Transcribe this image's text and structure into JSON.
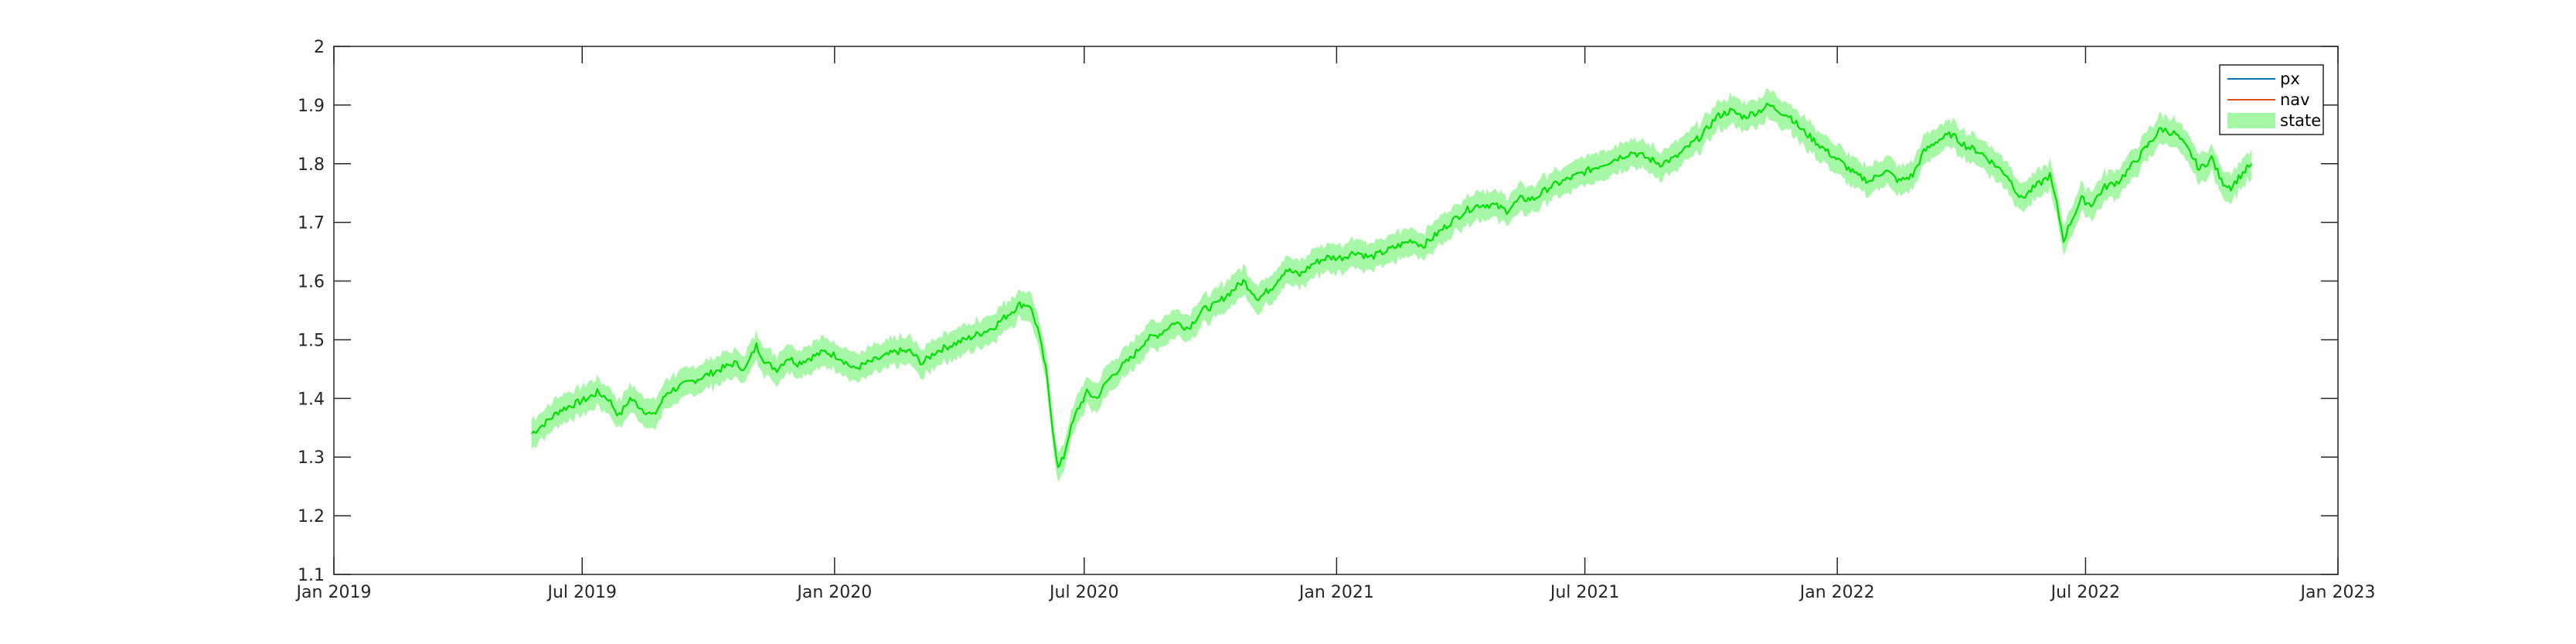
{
  "chart_data": {
    "type": "line",
    "title": "",
    "xlabel": "",
    "ylabel": "",
    "x_axis": {
      "type": "date",
      "range": [
        "2019-01-01",
        "2023-01-01"
      ],
      "ticks": [
        {
          "date": "2019-01-01",
          "label": "Jan 2019"
        },
        {
          "date": "2019-07-01",
          "label": "Jul 2019"
        },
        {
          "date": "2020-01-01",
          "label": "Jan 2020"
        },
        {
          "date": "2020-07-01",
          "label": "Jul 2020"
        },
        {
          "date": "2021-01-01",
          "label": "Jan 2021"
        },
        {
          "date": "2021-07-01",
          "label": "Jul 2021"
        },
        {
          "date": "2022-01-01",
          "label": "Jan 2022"
        },
        {
          "date": "2022-07-01",
          "label": "Jul 2022"
        },
        {
          "date": "2023-01-01",
          "label": "Jan 2023"
        }
      ]
    },
    "y_axis": {
      "range": [
        1.1,
        2.0
      ],
      "ticks": [
        1.1,
        1.2,
        1.3,
        1.4,
        1.5,
        1.6,
        1.7,
        1.8,
        1.9,
        2.0
      ],
      "tick_labels": [
        "1.1",
        "1.2",
        "1.3",
        "1.4",
        "1.5",
        "1.6",
        "1.7",
        "1.8",
        "1.9",
        "2"
      ]
    },
    "grid": false,
    "legend": {
      "position": "top-right",
      "entries": [
        {
          "name": "px",
          "color": "#0072BD",
          "kind": "line"
        },
        {
          "name": "nav",
          "color": "#D95319",
          "kind": "line"
        },
        {
          "name": "state",
          "color": "#A6F7A6",
          "kind": "band"
        }
      ]
    },
    "colors": {
      "line": "#00E000",
      "band": "#A6F7A6",
      "axes": "#262626"
    },
    "series": [
      {
        "name": "px",
        "band": 0.02,
        "points": [
          [
            "2019-05-25",
            1.34
          ],
          [
            "2019-06-05",
            1.36
          ],
          [
            "2019-06-15",
            1.38
          ],
          [
            "2019-06-25",
            1.39
          ],
          [
            "2019-07-05",
            1.4
          ],
          [
            "2019-07-12",
            1.41
          ],
          [
            "2019-07-20",
            1.4
          ],
          [
            "2019-07-28",
            1.37
          ],
          [
            "2019-08-05",
            1.4
          ],
          [
            "2019-08-15",
            1.38
          ],
          [
            "2019-08-22",
            1.37
          ],
          [
            "2019-09-01",
            1.41
          ],
          [
            "2019-09-10",
            1.42
          ],
          [
            "2019-09-20",
            1.43
          ],
          [
            "2019-09-30",
            1.44
          ],
          [
            "2019-10-10",
            1.45
          ],
          [
            "2019-10-20",
            1.46
          ],
          [
            "2019-10-28",
            1.45
          ],
          [
            "2019-11-05",
            1.49
          ],
          [
            "2019-11-12",
            1.46
          ],
          [
            "2019-11-20",
            1.45
          ],
          [
            "2019-11-28",
            1.47
          ],
          [
            "2019-12-05",
            1.46
          ],
          [
            "2019-12-15",
            1.47
          ],
          [
            "2019-12-25",
            1.48
          ],
          [
            "2020-01-05",
            1.47
          ],
          [
            "2020-01-15",
            1.45
          ],
          [
            "2020-01-25",
            1.46
          ],
          [
            "2020-02-05",
            1.47
          ],
          [
            "2020-02-15",
            1.48
          ],
          [
            "2020-02-25",
            1.48
          ],
          [
            "2020-03-05",
            1.46
          ],
          [
            "2020-03-15",
            1.48
          ],
          [
            "2020-03-25",
            1.49
          ],
          [
            "2020-04-05",
            1.5
          ],
          [
            "2020-04-15",
            1.51
          ],
          [
            "2020-04-25",
            1.52
          ],
          [
            "2020-05-05",
            1.54
          ],
          [
            "2020-05-15",
            1.56
          ],
          [
            "2020-05-22",
            1.56
          ],
          [
            "2020-05-28",
            1.52
          ],
          [
            "2020-06-03",
            1.45
          ],
          [
            "2020-06-08",
            1.35
          ],
          [
            "2020-06-12",
            1.28
          ],
          [
            "2020-06-16",
            1.3
          ],
          [
            "2020-06-20",
            1.34
          ],
          [
            "2020-06-26",
            1.38
          ],
          [
            "2020-07-03",
            1.41
          ],
          [
            "2020-07-10",
            1.4
          ],
          [
            "2020-07-18",
            1.43
          ],
          [
            "2020-07-26",
            1.45
          ],
          [
            "2020-08-05",
            1.47
          ],
          [
            "2020-08-15",
            1.5
          ],
          [
            "2020-08-25",
            1.51
          ],
          [
            "2020-09-05",
            1.53
          ],
          [
            "2020-09-15",
            1.52
          ],
          [
            "2020-09-25",
            1.55
          ],
          [
            "2020-10-05",
            1.56
          ],
          [
            "2020-10-15",
            1.58
          ],
          [
            "2020-10-25",
            1.6
          ],
          [
            "2020-11-05",
            1.57
          ],
          [
            "2020-11-15",
            1.59
          ],
          [
            "2020-11-25",
            1.62
          ],
          [
            "2020-12-05",
            1.61
          ],
          [
            "2020-12-15",
            1.63
          ],
          [
            "2020-12-25",
            1.64
          ],
          [
            "2021-01-05",
            1.64
          ],
          [
            "2021-01-15",
            1.65
          ],
          [
            "2021-01-25",
            1.64
          ],
          [
            "2021-02-05",
            1.65
          ],
          [
            "2021-02-15",
            1.66
          ],
          [
            "2021-02-25",
            1.67
          ],
          [
            "2021-03-05",
            1.66
          ],
          [
            "2021-03-15",
            1.68
          ],
          [
            "2021-03-25",
            1.7
          ],
          [
            "2021-04-05",
            1.72
          ],
          [
            "2021-04-15",
            1.73
          ],
          [
            "2021-04-25",
            1.73
          ],
          [
            "2021-05-05",
            1.72
          ],
          [
            "2021-05-15",
            1.74
          ],
          [
            "2021-05-25",
            1.74
          ],
          [
            "2021-06-05",
            1.76
          ],
          [
            "2021-06-15",
            1.77
          ],
          [
            "2021-06-25",
            1.78
          ],
          [
            "2021-07-05",
            1.79
          ],
          [
            "2021-07-15",
            1.8
          ],
          [
            "2021-07-25",
            1.81
          ],
          [
            "2021-08-05",
            1.82
          ],
          [
            "2021-08-15",
            1.81
          ],
          [
            "2021-08-25",
            1.8
          ],
          [
            "2021-09-05",
            1.81
          ],
          [
            "2021-09-15",
            1.83
          ],
          [
            "2021-09-25",
            1.85
          ],
          [
            "2021-10-05",
            1.88
          ],
          [
            "2021-10-15",
            1.89
          ],
          [
            "2021-10-25",
            1.88
          ],
          [
            "2021-11-05",
            1.89
          ],
          [
            "2021-11-12",
            1.9
          ],
          [
            "2021-11-20",
            1.89
          ],
          [
            "2021-11-28",
            1.88
          ],
          [
            "2021-12-05",
            1.86
          ],
          [
            "2021-12-15",
            1.84
          ],
          [
            "2021-12-25",
            1.82
          ],
          [
            "2022-01-05",
            1.8
          ],
          [
            "2022-01-15",
            1.78
          ],
          [
            "2022-01-25",
            1.77
          ],
          [
            "2022-02-05",
            1.79
          ],
          [
            "2022-02-15",
            1.77
          ],
          [
            "2022-02-25",
            1.78
          ],
          [
            "2022-03-05",
            1.82
          ],
          [
            "2022-03-15",
            1.84
          ],
          [
            "2022-03-25",
            1.85
          ],
          [
            "2022-04-05",
            1.83
          ],
          [
            "2022-04-15",
            1.82
          ],
          [
            "2022-04-25",
            1.8
          ],
          [
            "2022-05-05",
            1.78
          ],
          [
            "2022-05-15",
            1.74
          ],
          [
            "2022-05-25",
            1.76
          ],
          [
            "2022-06-05",
            1.78
          ],
          [
            "2022-06-10",
            1.73
          ],
          [
            "2022-06-15",
            1.67
          ],
          [
            "2022-06-20",
            1.7
          ],
          [
            "2022-06-28",
            1.74
          ],
          [
            "2022-07-05",
            1.73
          ],
          [
            "2022-07-15",
            1.76
          ],
          [
            "2022-07-25",
            1.77
          ],
          [
            "2022-08-05",
            1.8
          ],
          [
            "2022-08-15",
            1.83
          ],
          [
            "2022-08-25",
            1.86
          ],
          [
            "2022-09-05",
            1.85
          ],
          [
            "2022-09-15",
            1.82
          ],
          [
            "2022-09-22",
            1.79
          ],
          [
            "2022-10-01",
            1.81
          ],
          [
            "2022-10-08",
            1.77
          ],
          [
            "2022-10-15",
            1.76
          ],
          [
            "2022-10-22",
            1.78
          ],
          [
            "2022-10-30",
            1.8
          ]
        ]
      }
    ]
  }
}
